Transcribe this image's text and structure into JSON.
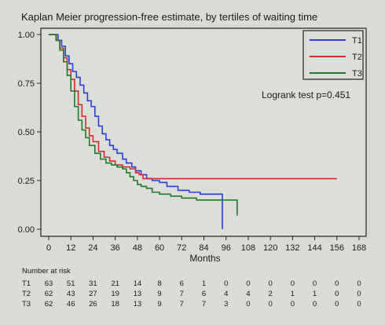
{
  "chart_data": {
    "type": "line",
    "title": "Kaplan Meier progression-free estimate, by tertiles of waiting time",
    "xlabel": "Months",
    "ylabel": "",
    "xlim": [
      0,
      168
    ],
    "ylim": [
      0,
      1
    ],
    "x_ticks": [
      0,
      12,
      24,
      36,
      48,
      60,
      72,
      84,
      96,
      108,
      120,
      132,
      144,
      156,
      168
    ],
    "y_ticks": [
      0,
      0.25,
      0.5,
      0.75,
      1
    ],
    "y_tick_labels": [
      "0.00",
      "0.25",
      "0.50",
      "0.75",
      "1.00"
    ],
    "annotation": "Logrank test p=0.451",
    "legend_position": "top-right",
    "series": [
      {
        "name": "T1",
        "color": "#2a3fd6",
        "points": [
          [
            0,
            1.0
          ],
          [
            3,
            1.0
          ],
          [
            5,
            0.97
          ],
          [
            7,
            0.94
          ],
          [
            9,
            0.89
          ],
          [
            11,
            0.85
          ],
          [
            13,
            0.81
          ],
          [
            15,
            0.78
          ],
          [
            17,
            0.74
          ],
          [
            19,
            0.7
          ],
          [
            21,
            0.66
          ],
          [
            23,
            0.63
          ],
          [
            25,
            0.58
          ],
          [
            27,
            0.53
          ],
          [
            29,
            0.49
          ],
          [
            31,
            0.46
          ],
          [
            33,
            0.43
          ],
          [
            35,
            0.41
          ],
          [
            37,
            0.39
          ],
          [
            40,
            0.36
          ],
          [
            42,
            0.34
          ],
          [
            45,
            0.32
          ],
          [
            47,
            0.3
          ],
          [
            50,
            0.28
          ],
          [
            53,
            0.26
          ],
          [
            56,
            0.25
          ],
          [
            60,
            0.24
          ],
          [
            64,
            0.22
          ],
          [
            70,
            0.2
          ],
          [
            76,
            0.19
          ],
          [
            82,
            0.18
          ],
          [
            90,
            0.18
          ],
          [
            94,
            0.17
          ],
          [
            94,
            0.0
          ]
        ]
      },
      {
        "name": "T2",
        "color": "#d42a2a",
        "points": [
          [
            0,
            1.0
          ],
          [
            3,
            1.0
          ],
          [
            4,
            0.97
          ],
          [
            6,
            0.93
          ],
          [
            8,
            0.88
          ],
          [
            10,
            0.82
          ],
          [
            12,
            0.77
          ],
          [
            14,
            0.71
          ],
          [
            16,
            0.64
          ],
          [
            18,
            0.58
          ],
          [
            20,
            0.52
          ],
          [
            22,
            0.48
          ],
          [
            24,
            0.45
          ],
          [
            27,
            0.4
          ],
          [
            30,
            0.37
          ],
          [
            33,
            0.35
          ],
          [
            36,
            0.33
          ],
          [
            40,
            0.32
          ],
          [
            44,
            0.31
          ],
          [
            47,
            0.29
          ],
          [
            49,
            0.28
          ],
          [
            51,
            0.26
          ],
          [
            60,
            0.26
          ],
          [
            100,
            0.26
          ],
          [
            156,
            0.26
          ]
        ]
      },
      {
        "name": "T3",
        "color": "#1f7a2a",
        "points": [
          [
            0,
            1.0
          ],
          [
            3,
            1.0
          ],
          [
            4,
            0.97
          ],
          [
            6,
            0.92
          ],
          [
            8,
            0.86
          ],
          [
            10,
            0.79
          ],
          [
            12,
            0.71
          ],
          [
            14,
            0.63
          ],
          [
            16,
            0.56
          ],
          [
            18,
            0.51
          ],
          [
            20,
            0.47
          ],
          [
            22,
            0.43
          ],
          [
            25,
            0.39
          ],
          [
            28,
            0.36
          ],
          [
            31,
            0.34
          ],
          [
            34,
            0.33
          ],
          [
            37,
            0.32
          ],
          [
            40,
            0.31
          ],
          [
            42,
            0.29
          ],
          [
            44,
            0.27
          ],
          [
            46,
            0.25
          ],
          [
            48,
            0.23
          ],
          [
            50,
            0.22
          ],
          [
            53,
            0.21
          ],
          [
            56,
            0.19
          ],
          [
            60,
            0.18
          ],
          [
            66,
            0.17
          ],
          [
            72,
            0.16
          ],
          [
            80,
            0.15
          ],
          [
            88,
            0.15
          ],
          [
            96,
            0.15
          ],
          [
            102,
            0.14
          ],
          [
            102,
            0.07
          ]
        ]
      }
    ],
    "risk_table": {
      "label": "Number at risk",
      "columns": [
        "0",
        "12",
        "24",
        "36",
        "48",
        "60",
        "72",
        "84",
        "96",
        "108",
        "120",
        "132",
        "144",
        "156",
        "168"
      ],
      "rows": [
        {
          "name": "T1",
          "values": [
            "63",
            "51",
            "31",
            "21",
            "14",
            "8",
            "6",
            "1",
            "0",
            "0",
            "0",
            "0",
            "0",
            "0",
            "0"
          ]
        },
        {
          "name": "T2",
          "values": [
            "62",
            "43",
            "27",
            "19",
            "13",
            "9",
            "7",
            "6",
            "4",
            "4",
            "2",
            "1",
            "1",
            "0",
            "0"
          ]
        },
        {
          "name": "T3",
          "values": [
            "62",
            "46",
            "26",
            "18",
            "13",
            "9",
            "7",
            "7",
            "3",
            "0",
            "0",
            "0",
            "0",
            "0",
            "0"
          ]
        }
      ]
    }
  }
}
